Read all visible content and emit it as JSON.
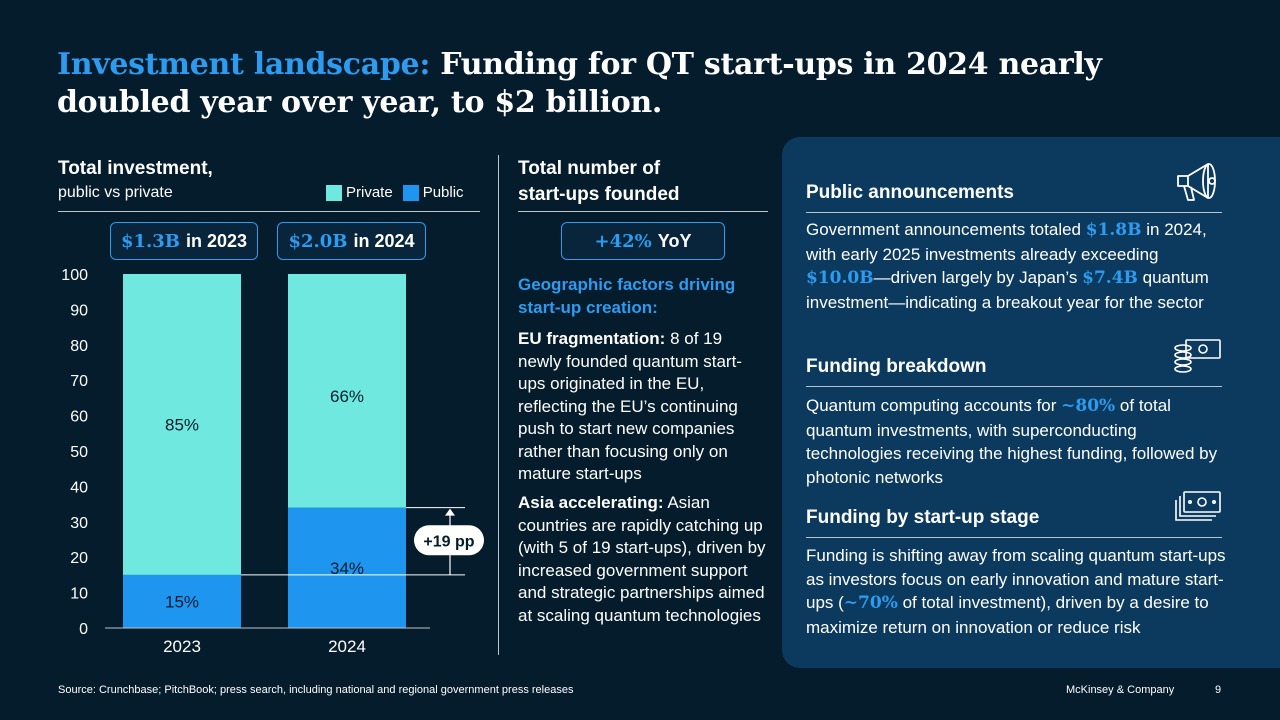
{
  "title": {
    "accent": "Investment landscape:",
    "rest": "Funding for QT start-ups in 2024 nearly doubled year over year, to $2 billion."
  },
  "left_panel": {
    "heading": "Total investment,",
    "subheading": "public vs private",
    "legend": {
      "private": "Private",
      "public": "Public"
    },
    "pills": [
      {
        "value": "$1.3B",
        "label": "in 2023"
      },
      {
        "value": "$2.0B",
        "label": "in 2024"
      }
    ],
    "annotation": "+19 pp"
  },
  "chart_data": {
    "type": "bar",
    "stacked": true,
    "categories": [
      "2023",
      "2024"
    ],
    "series": [
      {
        "name": "Public",
        "values": [
          15,
          34
        ],
        "labels": [
          "15%",
          "34%"
        ],
        "color": "#1e96f0"
      },
      {
        "name": "Private",
        "values": [
          85,
          66
        ],
        "labels": [
          "85%",
          "66%"
        ],
        "color": "#6fe8e0"
      }
    ],
    "ylim": [
      0,
      100
    ],
    "yticks": [
      "0",
      "10",
      "20",
      "30",
      "40",
      "50",
      "60",
      "70",
      "80",
      "90",
      "100"
    ],
    "title": "Total investment, public vs private",
    "xlabel": "",
    "ylabel": ""
  },
  "middle_panel": {
    "heading_line1": "Total number of",
    "heading_line2": "start-ups founded",
    "pill_value": "+42%",
    "pill_label": "YoY",
    "factors_heading": "Geographic factors driving start-up creation:",
    "eu_bold": "EU fragmentation:",
    "eu_text": "8 of 19 newly founded quantum start-ups originated in the EU, reflecting the EU’s continuing push to start new companies rather than focusing only on mature start-ups",
    "asia_bold": "Asia accelerating:",
    "asia_text": "Asian countries are rapidly catching up (with 5 of 19 start-ups), driven by increased government support and strategic partnerships aimed at scaling quantum technologies"
  },
  "right_panel": {
    "sections": [
      {
        "heading": "Public announcements",
        "icon": "megaphone-icon",
        "t1": "Government announcements totaled ",
        "v1": "$1.8B",
        "t2": " in 2024, with early 2025 investments already exceeding ",
        "v2": "$10.0B",
        "t3": "—driven largely by Japan’s ",
        "v3": "$7.4B",
        "t4": " quantum investment—indicating a breakout year for the sector"
      },
      {
        "heading": "Funding breakdown",
        "icon": "money-stack-icon",
        "t1": "Quantum computing accounts for ",
        "v1": "~80%",
        "t2": " of total quantum investments, with superconducting technologies receiving the highest funding, followed by photonic networks"
      },
      {
        "heading": "Funding by start-up stage",
        "icon": "banknotes-icon",
        "t1": "Funding is shifting away from scaling quantum start-ups as investors focus on early innovation and mature start-ups (",
        "v1": "~70%",
        "t2": " of total investment), driven by a desire to maximize return on innovation or reduce risk"
      }
    ]
  },
  "footer": {
    "source": "Source: Crunchbase; PitchBook; press search, including national and regional government press releases",
    "brand": "McKinsey & Company",
    "page": "9"
  }
}
